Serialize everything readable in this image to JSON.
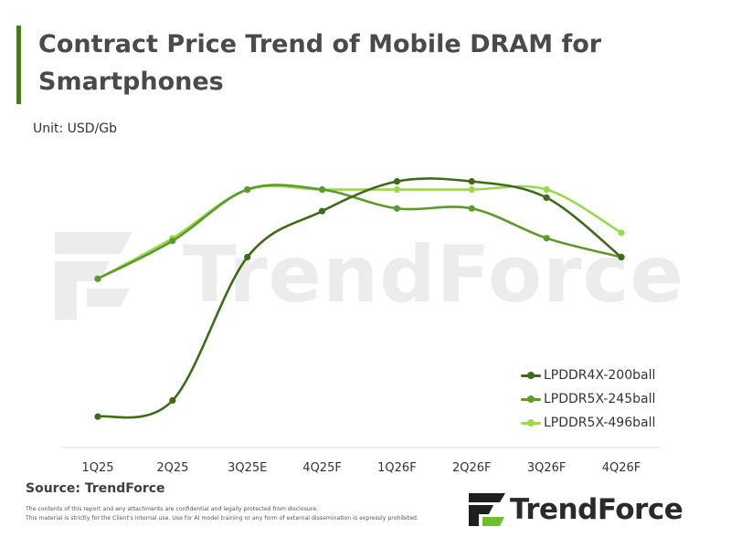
{
  "header": {
    "title": "Contract Price Trend of Mobile DRAM for Smartphones",
    "unit": "Unit: USD/Gb"
  },
  "footer": {
    "source": "Source: TrendForce",
    "disclaimer_line1": "The contents of this report and any attachments are confidential and legally protected from disclosure.",
    "disclaimer_line2": "This material is strictly for the Client's internal use. Use for AI model training or any form of external dissemination is expressly prohibited.",
    "logo_text": "TrendForce"
  },
  "watermark": {
    "text": "TrendForce"
  },
  "colors": {
    "accent": "#4a7a1e",
    "series": [
      "#3f6a1a",
      "#5c9a2a",
      "#9ad94e"
    ],
    "axis": "#d9d9d9"
  },
  "chart_data": {
    "type": "line",
    "title": "Contract Price Trend of Mobile DRAM for Smartphones",
    "ylabel": "Unit: USD/Gb",
    "categories": [
      "1Q25",
      "2Q25",
      "3Q25E",
      "4Q25F",
      "1Q26F",
      "2Q26F",
      "3Q26F",
      "4Q26F"
    ],
    "ylim": [
      0,
      100
    ],
    "y_axis_labels_shown": false,
    "grid": false,
    "smooth": true,
    "legend_position": "bottom-right",
    "series": [
      {
        "name": "LPDDR4X-200ball",
        "values": [
          4,
          10,
          63,
          80,
          91,
          91,
          85,
          63
        ]
      },
      {
        "name": "LPDDR5X-245ball",
        "values": [
          55,
          69,
          88,
          88,
          81,
          81,
          70,
          63
        ]
      },
      {
        "name": "LPDDR5X-496ball",
        "values": [
          55,
          70,
          88,
          88,
          88,
          88,
          88,
          72
        ]
      }
    ]
  }
}
